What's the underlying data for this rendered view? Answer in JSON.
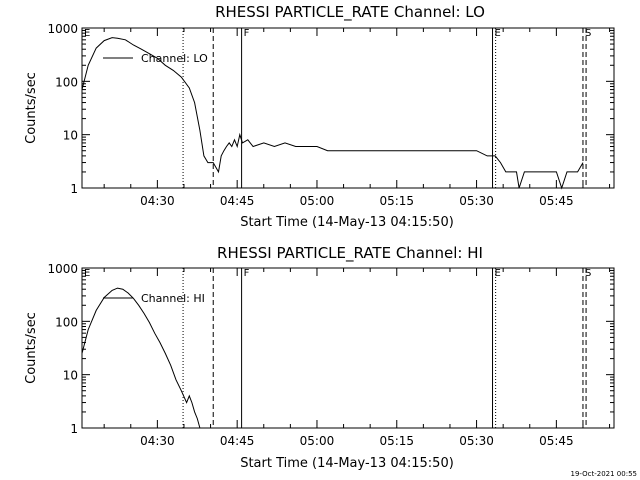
{
  "footer": {
    "timestamp": "19-Oct-2021 00:55"
  },
  "chart_data": [
    {
      "type": "line",
      "title": "RHESSI PARTICLE_RATE Channel: LO",
      "xlabel": "Start Time (14-May-13 04:15:50)",
      "ylabel": "Counts/sec",
      "ylog": true,
      "xlim": [
        "04:15:50",
        "05:55:50"
      ],
      "ylim": [
        1,
        1000
      ],
      "x_tick_labels": [
        "04:30",
        "04:45",
        "05:00",
        "05:15",
        "05:30",
        "05:45"
      ],
      "y_tick_labels": [
        "1",
        "10",
        "100",
        "1000"
      ],
      "legend": {
        "position": "top-left",
        "entries": [
          "Channel: LO"
        ]
      },
      "series": [
        {
          "name": "Channel: LO",
          "points": [
            [
              "04:15:50",
              70
            ],
            [
              "04:17:00",
              200
            ],
            [
              "04:18:30",
              420
            ],
            [
              "04:20:00",
              580
            ],
            [
              "04:21:30",
              660
            ],
            [
              "04:22:30",
              640
            ],
            [
              "04:24:00",
              600
            ],
            [
              "04:25:30",
              480
            ],
            [
              "04:27:00",
              400
            ],
            [
              "04:28:30",
              330
            ],
            [
              "04:30:00",
              270
            ],
            [
              "04:31:30",
              200
            ],
            [
              "04:33:00",
              160
            ],
            [
              "04:34:30",
              120
            ],
            [
              "04:36:00",
              75
            ],
            [
              "04:37:00",
              40
            ],
            [
              "04:38:00",
              12
            ],
            [
              "04:38:45",
              4
            ],
            [
              "04:39:30",
              3
            ],
            [
              "04:40:30",
              3
            ],
            [
              "04:41:30",
              2
            ],
            [
              "04:42:00",
              4
            ],
            [
              "04:42:30",
              5
            ],
            [
              "04:43:00",
              6
            ],
            [
              "04:43:30",
              7
            ],
            [
              "04:44:00",
              6
            ],
            [
              "04:44:30",
              8
            ],
            [
              "04:45:00",
              6
            ],
            [
              "04:45:30",
              10
            ],
            [
              "04:46:00",
              7
            ],
            [
              "04:47:00",
              8
            ],
            [
              "04:48:00",
              6
            ],
            [
              "04:50:00",
              7
            ],
            [
              "04:52:00",
              6
            ],
            [
              "04:54:00",
              7
            ],
            [
              "04:56:00",
              6
            ],
            [
              "04:58:00",
              6
            ],
            [
              "05:00:00",
              6
            ],
            [
              "05:02:00",
              5
            ],
            [
              "05:04:00",
              5
            ],
            [
              "05:06:00",
              5
            ],
            [
              "05:08:00",
              5
            ],
            [
              "05:10:00",
              5
            ],
            [
              "05:12:00",
              5
            ],
            [
              "05:14:00",
              5
            ],
            [
              "05:16:00",
              5
            ],
            [
              "05:18:00",
              5
            ],
            [
              "05:20:00",
              5
            ],
            [
              "05:22:00",
              5
            ],
            [
              "05:24:00",
              5
            ],
            [
              "05:26:00",
              5
            ],
            [
              "05:28:00",
              5
            ],
            [
              "05:30:00",
              5
            ],
            [
              "05:32:00",
              4
            ],
            [
              "05:33:30",
              4
            ],
            [
              "05:34:30",
              3
            ],
            [
              "05:35:30",
              2
            ],
            [
              "05:36:30",
              2
            ],
            [
              "05:37:30",
              2
            ],
            [
              "05:38:00",
              1
            ],
            [
              "05:39:00",
              2
            ],
            [
              "05:40:00",
              2
            ],
            [
              "05:41:00",
              2
            ],
            [
              "05:42:00",
              2
            ],
            [
              "05:43:00",
              2
            ],
            [
              "05:44:00",
              2
            ],
            [
              "05:45:00",
              2
            ],
            [
              "05:46:00",
              1
            ],
            [
              "05:47:00",
              2
            ],
            [
              "05:48:00",
              2
            ],
            [
              "05:49:00",
              2
            ],
            [
              "05:50:00",
              3
            ]
          ]
        }
      ],
      "markers": [
        {
          "label": "E",
          "time": "04:15:50",
          "style": "none"
        },
        {
          "label": "",
          "time": "04:34:50",
          "style": "dotted"
        },
        {
          "label": "",
          "time": "04:40:30",
          "style": "dashed"
        },
        {
          "label": "F",
          "time": "04:45:50",
          "style": "solid"
        },
        {
          "label": "E",
          "time": "05:33:00",
          "style": "solid"
        },
        {
          "label": "",
          "time": "05:33:35",
          "style": "dotted"
        },
        {
          "label": "S",
          "time": "05:50:00",
          "style": "dashed"
        },
        {
          "label": "",
          "time": "05:50:35",
          "style": "dashed"
        }
      ]
    },
    {
      "type": "line",
      "title": "RHESSI PARTICLE_RATE Channel: HI",
      "xlabel": "Start Time (14-May-13 04:15:50)",
      "ylabel": "Counts/sec",
      "ylog": true,
      "xlim": [
        "04:15:50",
        "05:55:50"
      ],
      "ylim": [
        1,
        1000
      ],
      "x_tick_labels": [
        "04:30",
        "04:45",
        "05:00",
        "05:15",
        "05:30",
        "05:45"
      ],
      "y_tick_labels": [
        "1",
        "10",
        "100",
        "1000"
      ],
      "legend": {
        "position": "top-left",
        "entries": [
          "Channel: HI"
        ]
      },
      "series": [
        {
          "name": "Channel: HI",
          "points": [
            [
              "04:15:50",
              25
            ],
            [
              "04:17:00",
              70
            ],
            [
              "04:18:30",
              160
            ],
            [
              "04:20:00",
              280
            ],
            [
              "04:21:30",
              380
            ],
            [
              "04:22:30",
              420
            ],
            [
              "04:23:30",
              400
            ],
            [
              "04:24:30",
              340
            ],
            [
              "04:25:30",
              270
            ],
            [
              "04:26:30",
              200
            ],
            [
              "04:27:30",
              140
            ],
            [
              "04:28:30",
              95
            ],
            [
              "04:29:30",
              60
            ],
            [
              "04:30:30",
              40
            ],
            [
              "04:31:30",
              25
            ],
            [
              "04:32:30",
              15
            ],
            [
              "04:33:30",
              8
            ],
            [
              "04:34:30",
              5
            ],
            [
              "04:35:30",
              3
            ],
            [
              "04:36:00",
              4
            ],
            [
              "04:36:30",
              3
            ],
            [
              "04:37:00",
              2
            ],
            [
              "04:37:30",
              1.5
            ],
            [
              "04:38:00",
              1
            ]
          ]
        }
      ],
      "markers": [
        {
          "label": "E",
          "time": "04:15:50",
          "style": "none"
        },
        {
          "label": "",
          "time": "04:34:50",
          "style": "dotted"
        },
        {
          "label": "",
          "time": "04:40:30",
          "style": "dashed"
        },
        {
          "label": "F",
          "time": "04:45:50",
          "style": "solid"
        },
        {
          "label": "E",
          "time": "05:33:00",
          "style": "solid"
        },
        {
          "label": "",
          "time": "05:33:35",
          "style": "dotted"
        },
        {
          "label": "S",
          "time": "05:50:00",
          "style": "dashed"
        },
        {
          "label": "",
          "time": "05:50:35",
          "style": "dashed"
        }
      ]
    }
  ]
}
